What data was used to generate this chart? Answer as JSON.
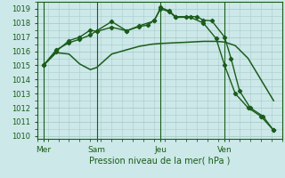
{
  "background_color": "#cce8e8",
  "grid_color": "#aacccc",
  "line_color": "#1a5c1a",
  "title": "Pression niveau de la mer( hPa )",
  "x_ticks_labels": [
    "Mer",
    "Sam",
    "Jeu",
    "Ven"
  ],
  "ylim": [
    1009.8,
    1019.5
  ],
  "yticks": [
    1010,
    1011,
    1012,
    1013,
    1014,
    1015,
    1016,
    1017,
    1018,
    1019
  ],
  "xlim": [
    0,
    11.5
  ],
  "x_ticks_pos": [
    0.3,
    2.8,
    5.8,
    8.8
  ],
  "vert_lines": [
    0.3,
    2.8,
    5.8,
    8.8
  ],
  "series1_x": [
    0.3,
    0.9,
    1.5,
    2.0,
    2.5,
    2.8,
    3.5,
    4.2,
    4.8,
    5.4,
    5.8,
    6.5,
    7.2,
    7.8,
    8.4,
    8.8,
    9.3,
    9.9,
    10.5,
    11.1
  ],
  "series1_y": [
    1015.0,
    1015.9,
    1015.8,
    1015.1,
    1014.7,
    1014.85,
    1015.8,
    1016.1,
    1016.35,
    1016.5,
    1016.55,
    1016.6,
    1016.65,
    1016.7,
    1016.7,
    1016.65,
    1016.4,
    1015.5,
    1014.0,
    1012.5
  ],
  "series2_x": [
    0.3,
    0.9,
    1.5,
    2.0,
    2.5,
    2.8,
    3.5,
    4.2,
    4.8,
    5.2,
    5.5,
    5.8,
    6.2,
    6.5,
    7.2,
    7.8,
    8.4,
    8.8,
    9.3,
    9.9,
    10.5,
    11.1
  ],
  "series2_y": [
    1015.0,
    1016.0,
    1016.75,
    1017.0,
    1017.5,
    1017.4,
    1017.7,
    1017.45,
    1017.75,
    1017.85,
    1018.2,
    1019.0,
    1018.8,
    1018.4,
    1018.4,
    1018.0,
    1016.9,
    1015.0,
    1013.0,
    1012.0,
    1011.4,
    1010.4
  ],
  "series3_x": [
    0.3,
    0.9,
    1.5,
    2.0,
    2.5,
    2.8,
    3.5,
    4.2,
    4.8,
    5.5,
    5.8,
    6.2,
    6.5,
    7.0,
    7.5,
    7.8,
    8.2,
    8.8,
    9.1,
    9.5,
    10.0,
    10.6,
    11.1
  ],
  "series3_y": [
    1015.0,
    1016.1,
    1016.6,
    1016.85,
    1017.15,
    1017.45,
    1018.1,
    1017.45,
    1017.8,
    1018.15,
    1019.1,
    1018.85,
    1018.45,
    1018.45,
    1018.45,
    1018.2,
    1018.15,
    1017.0,
    1015.5,
    1013.2,
    1012.0,
    1011.4,
    1010.4
  ]
}
